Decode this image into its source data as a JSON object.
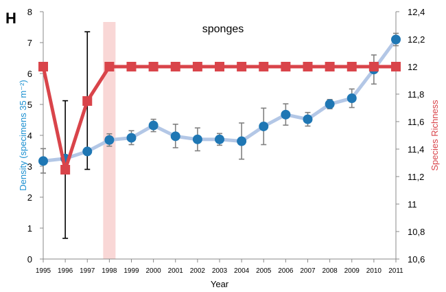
{
  "panel_label": "H",
  "chart_data": {
    "type": "line",
    "title": "sponges",
    "xlabel": "Year",
    "ylabel": "Density (specimens 35 m⁻²)",
    "y2label": "Species Richness",
    "x": [
      "1995",
      "1996",
      "1997",
      "1998",
      "1999",
      "2000",
      "2001",
      "2002",
      "2003",
      "2004",
      "2005",
      "2006",
      "2007",
      "2008",
      "2009",
      "2010",
      "2011"
    ],
    "ylim": [
      0,
      8
    ],
    "yticks": [
      "0",
      "1",
      "2",
      "3",
      "4",
      "5",
      "6",
      "7",
      "8"
    ],
    "y2lim": [
      10.6,
      12.4
    ],
    "y2ticks": [
      "10,6",
      "10,8",
      "11",
      "11,2",
      "11,4",
      "11,6",
      "11,8",
      "12",
      "12,2",
      "12,4"
    ],
    "highlight_year": "1998",
    "series": [
      {
        "axis": "left",
        "marker": "circle",
        "color": "#1f77b4",
        "line_color": "#b3c7e6",
        "values": [
          3.17,
          3.25,
          3.48,
          3.85,
          3.92,
          4.32,
          3.97,
          3.87,
          3.87,
          3.81,
          4.29,
          4.67,
          4.52,
          5.01,
          5.2,
          6.13,
          7.1
        ],
        "error": [
          [
            2.78,
            3.57
          ],
          [
            0.67,
            5.12
          ],
          [
            2.9,
            7.35
          ],
          [
            3.65,
            4.05
          ],
          [
            3.7,
            4.15
          ],
          [
            4.12,
            4.52
          ],
          [
            3.6,
            4.36
          ],
          [
            3.5,
            4.24
          ],
          [
            3.68,
            4.06
          ],
          [
            3.23,
            4.4
          ],
          [
            3.7,
            4.88
          ],
          [
            4.33,
            5.02
          ],
          [
            4.3,
            4.74
          ],
          [
            4.86,
            5.16
          ],
          [
            4.9,
            5.5
          ],
          [
            5.66,
            6.6
          ],
          [
            6.9,
            7.3
          ]
        ]
      },
      {
        "axis": "right",
        "marker": "square",
        "color": "#d9444a",
        "values": [
          12,
          11.25,
          11.75,
          12,
          12,
          12,
          12,
          12,
          12,
          12,
          12,
          12,
          12,
          12,
          12,
          12,
          12
        ]
      }
    ]
  }
}
